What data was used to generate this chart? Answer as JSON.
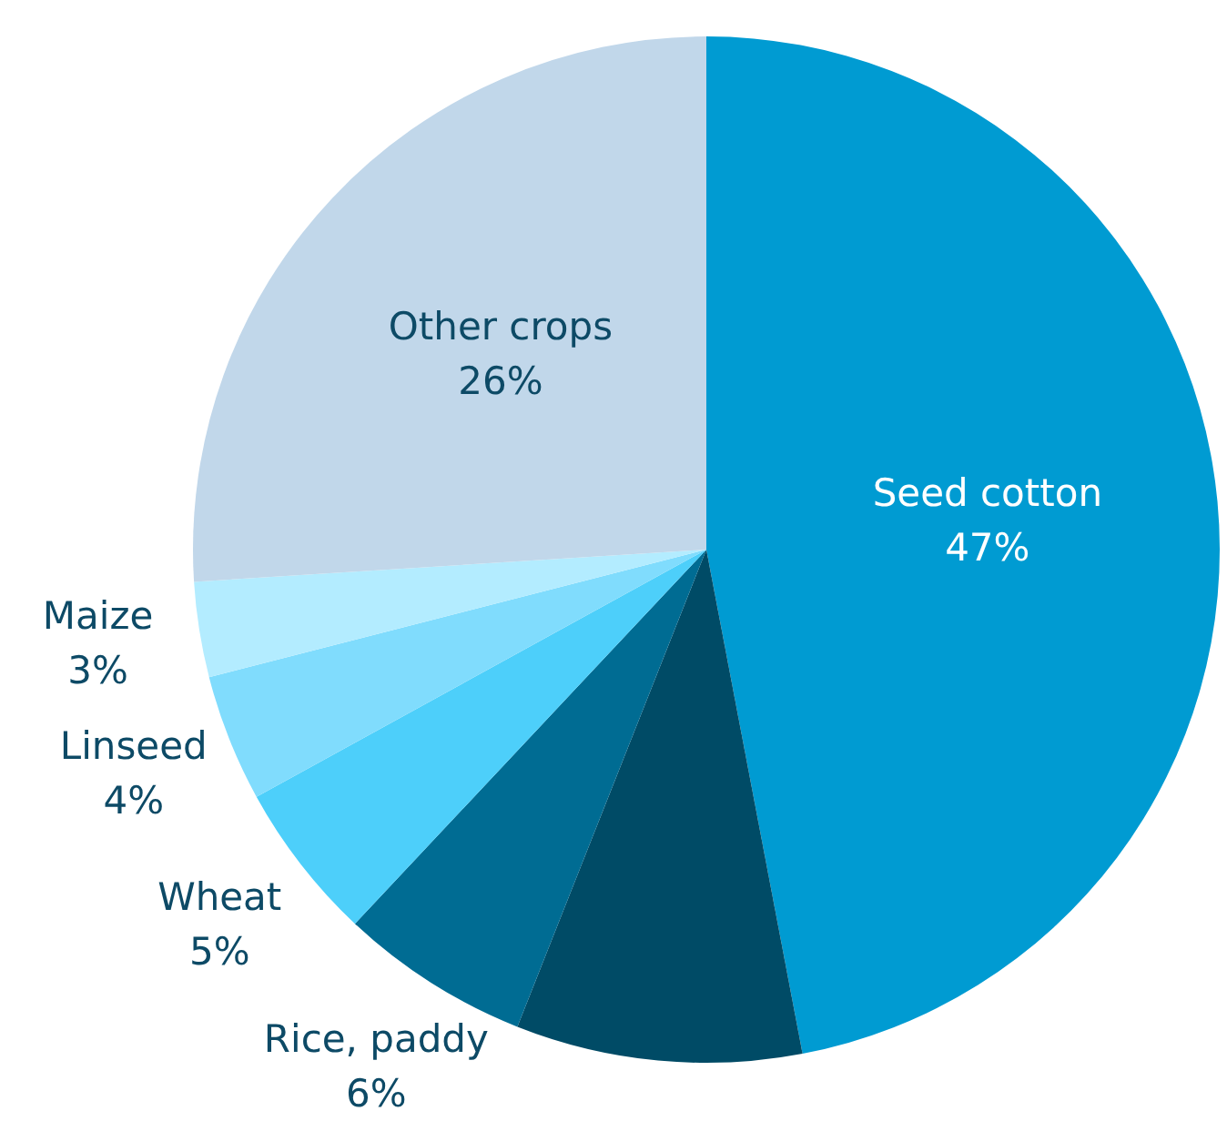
{
  "chart_data": {
    "type": "pie",
    "categories": [
      "Seed cotton",
      null,
      "Rice, paddy",
      "Wheat",
      "Linseed",
      "Maize",
      "Other crops"
    ],
    "values": [
      47,
      9,
      6,
      5,
      4,
      3,
      26
    ],
    "value_labels": [
      "47%",
      null,
      "6%",
      "5%",
      "4%",
      "3%",
      "26%"
    ],
    "colors": [
      "#009bd2",
      "#004b66",
      "#006c93",
      "#4dcffa",
      "#80dcfd",
      "#b3ecff",
      "#c1d7ea"
    ],
    "legend": false
  }
}
